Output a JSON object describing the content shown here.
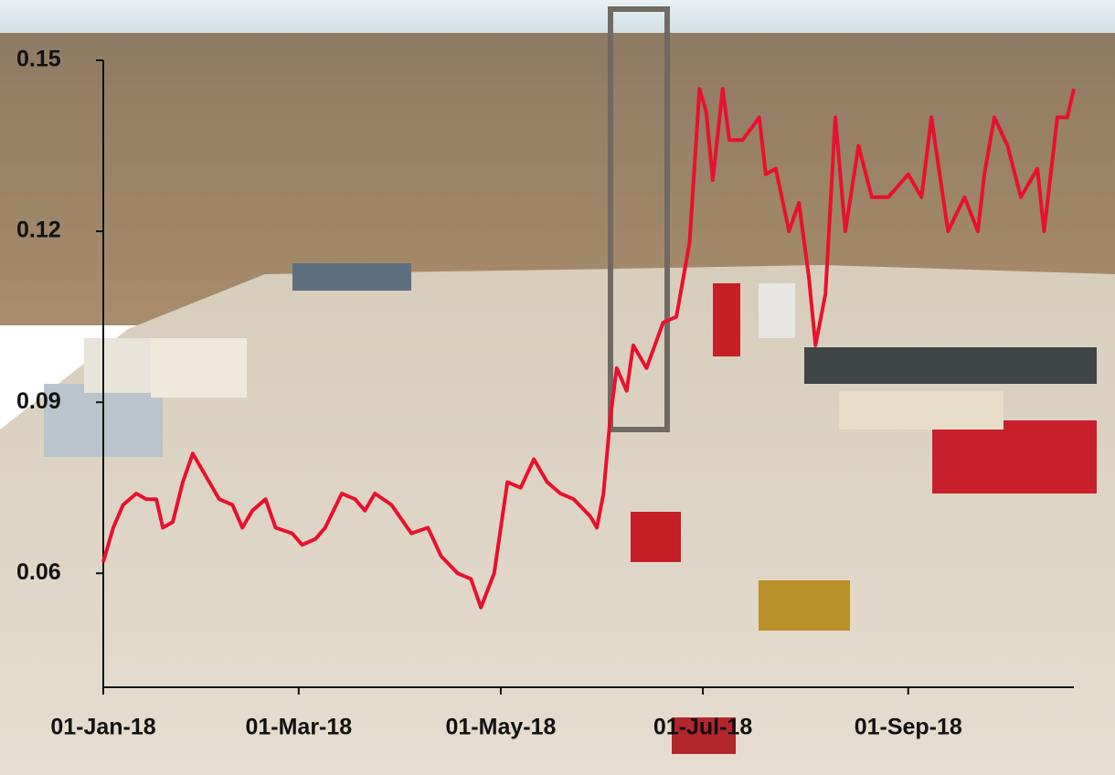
{
  "chart_data": {
    "type": "line",
    "x": [
      "2018-01-01",
      "2018-01-04",
      "2018-01-07",
      "2018-01-11",
      "2018-01-14",
      "2018-01-17",
      "2018-01-19",
      "2018-01-22",
      "2018-01-25",
      "2018-01-28",
      "2018-02-01",
      "2018-02-05",
      "2018-02-09",
      "2018-02-12",
      "2018-02-15",
      "2018-02-19",
      "2018-02-22",
      "2018-02-27",
      "2018-03-02",
      "2018-03-06",
      "2018-03-09",
      "2018-03-14",
      "2018-03-18",
      "2018-03-21",
      "2018-03-24",
      "2018-03-29",
      "2018-04-04",
      "2018-04-09",
      "2018-04-13",
      "2018-04-18",
      "2018-04-22",
      "2018-04-25",
      "2018-04-29",
      "2018-05-03",
      "2018-05-07",
      "2018-05-11",
      "2018-05-15",
      "2018-05-19",
      "2018-05-23",
      "2018-05-28",
      "2018-05-30",
      "2018-06-01",
      "2018-06-03",
      "2018-06-05",
      "2018-06-08",
      "2018-06-10",
      "2018-06-14",
      "2018-06-19",
      "2018-06-23",
      "2018-06-27",
      "2018-06-30",
      "2018-07-02",
      "2018-07-04",
      "2018-07-07",
      "2018-07-09",
      "2018-07-13",
      "2018-07-18",
      "2018-07-20",
      "2018-07-23",
      "2018-07-27",
      "2018-07-30",
      "2018-08-02",
      "2018-08-04",
      "2018-08-07",
      "2018-08-10",
      "2018-08-13",
      "2018-08-17",
      "2018-08-21",
      "2018-08-26",
      "2018-09-01",
      "2018-09-05",
      "2018-09-08",
      "2018-09-13",
      "2018-09-18",
      "2018-09-22",
      "2018-09-24",
      "2018-09-27",
      "2018-10-01",
      "2018-10-05",
      "2018-10-10",
      "2018-10-12",
      "2018-10-16",
      "2018-10-19",
      "2018-10-21"
    ],
    "values": [
      0.062,
      0.068,
      0.072,
      0.074,
      0.073,
      0.073,
      0.068,
      0.069,
      0.076,
      0.081,
      0.077,
      0.073,
      0.072,
      0.068,
      0.071,
      0.073,
      0.068,
      0.067,
      0.065,
      0.066,
      0.068,
      0.074,
      0.073,
      0.071,
      0.074,
      0.072,
      0.067,
      0.068,
      0.063,
      0.06,
      0.059,
      0.054,
      0.06,
      0.076,
      0.075,
      0.08,
      0.076,
      0.074,
      0.073,
      0.07,
      0.068,
      0.074,
      0.087,
      0.096,
      0.092,
      0.1,
      0.096,
      0.104,
      0.105,
      0.118,
      0.145,
      0.141,
      0.129,
      0.145,
      0.136,
      0.136,
      0.14,
      0.13,
      0.131,
      0.12,
      0.125,
      0.112,
      0.1,
      0.109,
      0.14,
      0.12,
      0.135,
      0.126,
      0.126,
      0.13,
      0.126,
      0.14,
      0.12,
      0.126,
      0.12,
      0.13,
      0.14,
      0.135,
      0.126,
      0.131,
      0.12,
      0.14,
      0.14,
      0.145
    ],
    "color": "#e8112d",
    "xlim": [
      "2018-01-01",
      "2018-10-21"
    ],
    "xticks": [
      {
        "value": "2018-01-01",
        "label": "01-Jan-18"
      },
      {
        "value": "2018-03-01",
        "label": "01-Mar-18"
      },
      {
        "value": "2018-05-01",
        "label": "01-May-18"
      },
      {
        "value": "2018-07-01",
        "label": "01-Jul-18"
      },
      {
        "value": "2018-09-01",
        "label": "01-Sep-18"
      }
    ],
    "ylim": [
      0.04,
      0.15
    ],
    "yticks": [
      0.06,
      0.09,
      0.12,
      0.15
    ],
    "grid": false
  }
}
